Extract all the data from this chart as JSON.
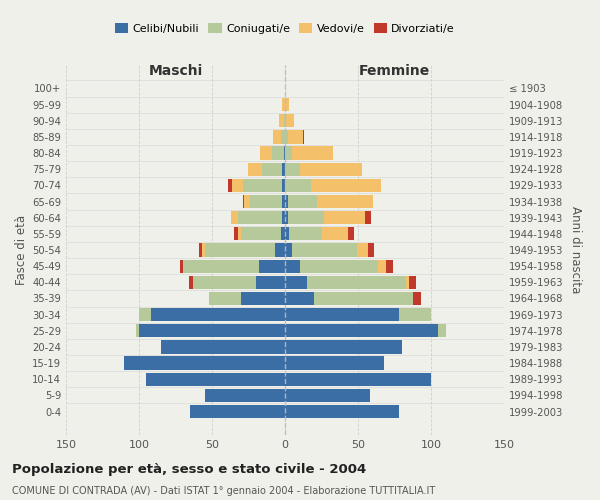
{
  "age_groups": [
    "0-4",
    "5-9",
    "10-14",
    "15-19",
    "20-24",
    "25-29",
    "30-34",
    "35-39",
    "40-44",
    "45-49",
    "50-54",
    "55-59",
    "60-64",
    "65-69",
    "70-74",
    "75-79",
    "80-84",
    "85-89",
    "90-94",
    "95-99",
    "100+"
  ],
  "birth_years": [
    "1999-2003",
    "1994-1998",
    "1989-1993",
    "1984-1988",
    "1979-1983",
    "1974-1978",
    "1969-1973",
    "1964-1968",
    "1959-1963",
    "1954-1958",
    "1949-1953",
    "1944-1948",
    "1939-1943",
    "1934-1938",
    "1929-1933",
    "1924-1928",
    "1919-1923",
    "1914-1918",
    "1909-1913",
    "1904-1908",
    "≤ 1903"
  ],
  "males": {
    "celibi": [
      65,
      55,
      95,
      110,
      85,
      100,
      92,
      30,
      20,
      18,
      7,
      3,
      2,
      2,
      2,
      2,
      1,
      0,
      0,
      0,
      0
    ],
    "coniugati": [
      0,
      0,
      0,
      0,
      0,
      2,
      8,
      22,
      43,
      52,
      48,
      27,
      30,
      22,
      27,
      14,
      8,
      3,
      1,
      0,
      0
    ],
    "vedovi": [
      0,
      0,
      0,
      0,
      0,
      0,
      0,
      0,
      0,
      0,
      2,
      2,
      5,
      4,
      7,
      9,
      8,
      5,
      3,
      2,
      0
    ],
    "divorziati": [
      0,
      0,
      0,
      0,
      0,
      0,
      0,
      0,
      3,
      2,
      2,
      3,
      0,
      1,
      3,
      0,
      0,
      0,
      0,
      0,
      0
    ]
  },
  "females": {
    "nubili": [
      78,
      58,
      100,
      68,
      80,
      105,
      78,
      20,
      15,
      10,
      5,
      3,
      2,
      2,
      0,
      0,
      0,
      0,
      0,
      0,
      0
    ],
    "coniugate": [
      0,
      0,
      0,
      0,
      0,
      5,
      22,
      68,
      68,
      54,
      44,
      22,
      25,
      20,
      18,
      10,
      5,
      2,
      1,
      0,
      0
    ],
    "vedove": [
      0,
      0,
      0,
      0,
      0,
      0,
      0,
      0,
      2,
      5,
      8,
      18,
      28,
      38,
      48,
      43,
      28,
      10,
      5,
      3,
      0
    ],
    "divorziate": [
      0,
      0,
      0,
      0,
      0,
      0,
      0,
      5,
      5,
      5,
      4,
      4,
      4,
      0,
      0,
      0,
      0,
      1,
      0,
      0,
      0
    ]
  },
  "colors": {
    "celibi": "#3b6ea5",
    "coniugati": "#b5c99a",
    "vedovi": "#f5c06a",
    "divorziati": "#c0392b"
  },
  "xlim": 150,
  "title": "Popolazione per età, sesso e stato civile - 2004",
  "subtitle": "COMUNE DI CONTRADA (AV) - Dati ISTAT 1° gennaio 2004 - Elaborazione TUTTITALIA.IT",
  "xlabel_left": "Maschi",
  "xlabel_right": "Femmine",
  "ylabel_left": "Fasce di età",
  "ylabel_right": "Anni di nascita",
  "bg_color": "#f0f0eb",
  "grid_color": "#cccccc"
}
